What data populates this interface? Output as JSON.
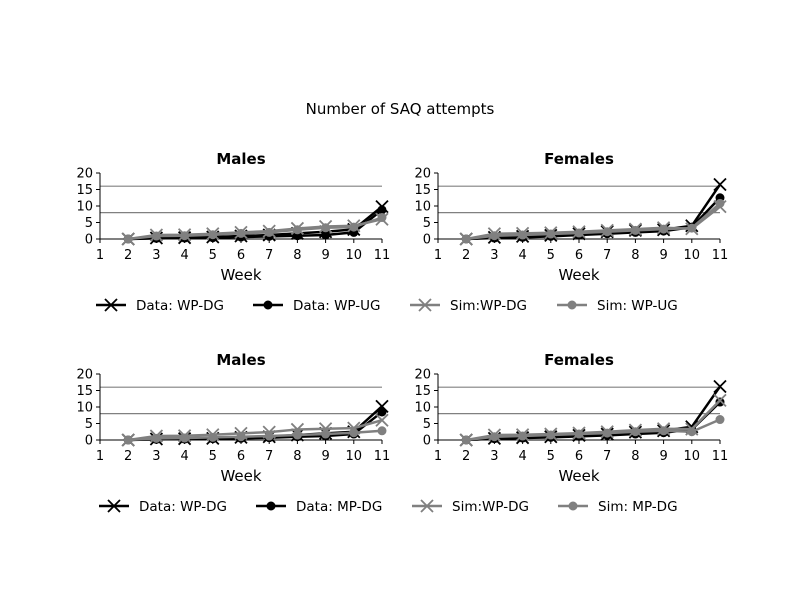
{
  "figure": {
    "title": "Number of SAQ attempts"
  },
  "colors": {
    "black": "#000000",
    "gray": "#808080",
    "refline": "#808080"
  },
  "legend_groups": [
    {
      "entries": [
        {
          "label": "Data: WP-DG",
          "color": "#000000",
          "marker": "x"
        },
        {
          "label": "Data: WP-UG",
          "color": "#000000",
          "marker": "o"
        },
        {
          "label": "Sim:WP-DG",
          "color": "#808080",
          "marker": "x"
        },
        {
          "label": "Sim: WP-UG",
          "color": "#808080",
          "marker": "o"
        }
      ]
    },
    {
      "entries": [
        {
          "label": "Data: WP-DG",
          "color": "#000000",
          "marker": "x"
        },
        {
          "label": "Data: MP-DG",
          "color": "#000000",
          "marker": "o"
        },
        {
          "label": "Sim:WP-DG",
          "color": "#808080",
          "marker": "x"
        },
        {
          "label": "Sim: MP-DG",
          "color": "#808080",
          "marker": "o"
        }
      ]
    }
  ],
  "chart_data": [
    {
      "type": "line",
      "title": "Males",
      "xlabel": "Week",
      "ylabel": "",
      "xlim": [
        1,
        11
      ],
      "ylim": [
        0,
        20
      ],
      "xticks": [
        1,
        2,
        3,
        4,
        5,
        6,
        7,
        8,
        9,
        10,
        11
      ],
      "yticks": [
        0,
        5,
        10,
        15,
        20
      ],
      "reference_lines": [
        8,
        16
      ],
      "x": [
        2,
        3,
        4,
        5,
        6,
        7,
        8,
        9,
        10,
        11
      ],
      "series": [
        {
          "name": "Data: WP-DG",
          "color": "#000000",
          "marker": "x",
          "values": [
            0,
            0.3,
            0.4,
            0.6,
            0.9,
            1.2,
            1.7,
            2.2,
            2.9,
            9.8
          ]
        },
        {
          "name": "Data: WP-UG",
          "color": "#000000",
          "marker": "o",
          "values": [
            0,
            0.2,
            0.3,
            0.4,
            0.6,
            0.8,
            1.0,
            1.2,
            2.0,
            8.8
          ]
        },
        {
          "name": "Sim:WP-DG",
          "color": "#808080",
          "marker": "x",
          "values": [
            0,
            1.2,
            1.3,
            1.6,
            2.0,
            2.4,
            3.2,
            3.8,
            4.0,
            6.0
          ]
        },
        {
          "name": "Sim: WP-UG",
          "color": "#808080",
          "marker": "o",
          "values": [
            0,
            0.9,
            1.0,
            1.3,
            1.7,
            2.0,
            2.8,
            3.4,
            3.6,
            6.5
          ]
        }
      ]
    },
    {
      "type": "line",
      "title": "Females",
      "xlabel": "Week",
      "ylabel": "",
      "xlim": [
        1,
        11
      ],
      "ylim": [
        0,
        20
      ],
      "xticks": [
        1,
        2,
        3,
        4,
        5,
        6,
        7,
        8,
        9,
        10,
        11
      ],
      "yticks": [
        0,
        5,
        10,
        15,
        20
      ],
      "reference_lines": [
        8,
        16
      ],
      "x": [
        2,
        3,
        4,
        5,
        6,
        7,
        8,
        9,
        10,
        11
      ],
      "series": [
        {
          "name": "Data: WP-DG",
          "color": "#000000",
          "marker": "x",
          "values": [
            0,
            0.5,
            0.8,
            1.1,
            1.6,
            2.2,
            2.6,
            2.8,
            4.0,
            16.5
          ]
        },
        {
          "name": "Data: WP-UG",
          "color": "#000000",
          "marker": "o",
          "values": [
            0,
            0.3,
            0.5,
            0.8,
            1.2,
            1.6,
            2.0,
            2.4,
            3.6,
            12.5
          ]
        },
        {
          "name": "Sim:WP-DG",
          "color": "#808080",
          "marker": "x",
          "values": [
            0,
            1.6,
            1.7,
            1.9,
            2.2,
            2.6,
            3.0,
            3.4,
            3.1,
            9.8
          ]
        },
        {
          "name": "Sim: WP-UG",
          "color": "#808080",
          "marker": "o",
          "values": [
            0,
            1.0,
            1.2,
            1.5,
            1.8,
            2.2,
            2.6,
            3.0,
            3.3,
            10.8
          ]
        }
      ]
    },
    {
      "type": "line",
      "title": "Males",
      "xlabel": "Week",
      "ylabel": "",
      "xlim": [
        1,
        11
      ],
      "ylim": [
        0,
        20
      ],
      "xticks": [
        1,
        2,
        3,
        4,
        5,
        6,
        7,
        8,
        9,
        10,
        11
      ],
      "yticks": [
        0,
        5,
        10,
        15,
        20
      ],
      "reference_lines": [
        8,
        16
      ],
      "x": [
        2,
        3,
        4,
        5,
        6,
        7,
        8,
        9,
        10,
        11
      ],
      "series": [
        {
          "name": "Data: WP-DG",
          "color": "#000000",
          "marker": "x",
          "values": [
            0,
            0.3,
            0.4,
            0.5,
            0.8,
            1.0,
            1.5,
            2.0,
            2.5,
            10.2
          ]
        },
        {
          "name": "Data: MP-DG",
          "color": "#000000",
          "marker": "o",
          "values": [
            0,
            0.2,
            0.3,
            0.4,
            0.5,
            0.7,
            1.0,
            1.2,
            1.8,
            8.5
          ]
        },
        {
          "name": "Sim:WP-DG",
          "color": "#808080",
          "marker": "x",
          "values": [
            0,
            1.2,
            1.3,
            1.6,
            2.0,
            2.4,
            3.2,
            3.4,
            3.6,
            6.0
          ]
        },
        {
          "name": "Sim: MP-DG",
          "color": "#808080",
          "marker": "o",
          "values": [
            0,
            0.5,
            0.6,
            0.8,
            1.0,
            1.2,
            1.5,
            1.8,
            2.2,
            2.8
          ]
        }
      ]
    },
    {
      "type": "line",
      "title": "Females",
      "xlabel": "Week",
      "ylabel": "",
      "xlim": [
        1,
        11
      ],
      "ylim": [
        0,
        20
      ],
      "xticks": [
        1,
        2,
        3,
        4,
        5,
        6,
        7,
        8,
        9,
        10,
        11
      ],
      "yticks": [
        0,
        5,
        10,
        15,
        20
      ],
      "reference_lines": [
        8,
        16
      ],
      "x": [
        2,
        3,
        4,
        5,
        6,
        7,
        8,
        9,
        10,
        11
      ],
      "series": [
        {
          "name": "Data: WP-DG",
          "color": "#000000",
          "marker": "x",
          "values": [
            0,
            0.5,
            0.7,
            1.0,
            1.4,
            1.8,
            2.4,
            2.8,
            4.0,
            16.2
          ]
        },
        {
          "name": "Data: MP-DG",
          "color": "#000000",
          "marker": "o",
          "values": [
            0,
            0.4,
            0.6,
            0.8,
            1.1,
            1.4,
            1.8,
            2.2,
            3.2,
            11.5
          ]
        },
        {
          "name": "Sim:WP-DG",
          "color": "#808080",
          "marker": "x",
          "values": [
            0,
            1.5,
            1.6,
            1.8,
            2.1,
            2.5,
            3.0,
            3.4,
            3.3,
            12.0
          ]
        },
        {
          "name": "Sim: MP-DG",
          "color": "#808080",
          "marker": "o",
          "values": [
            0,
            1.0,
            1.2,
            1.5,
            1.8,
            2.1,
            2.5,
            2.8,
            2.5,
            6.2
          ]
        }
      ]
    }
  ]
}
